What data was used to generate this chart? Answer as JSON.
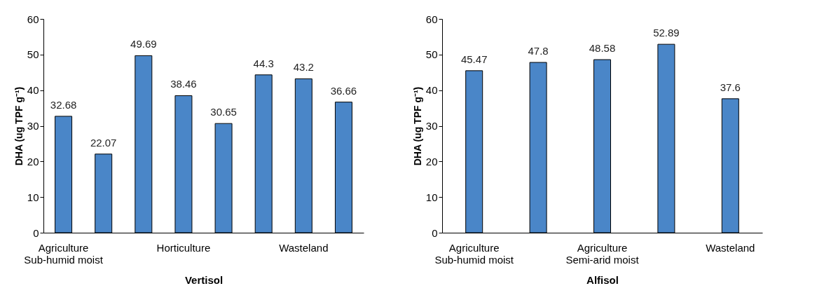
{
  "chart_data": [
    {
      "type": "bar",
      "xlabel": "Vertisol",
      "ylabel": "DHA (ug TPF g⁻¹)",
      "categories": [
        "Agriculture\nSub-humid moist",
        null,
        null,
        "Horticulture",
        null,
        null,
        "Wasteland",
        null
      ],
      "values": [
        32.68,
        22.07,
        49.69,
        38.46,
        30.65,
        44.3,
        43.2,
        36.66
      ],
      "color": "#4a86c8",
      "ylim": [
        0,
        60
      ],
      "yticks": [
        0,
        10,
        20,
        30,
        40,
        50,
        60
      ],
      "data_labels": true
    },
    {
      "type": "bar",
      "xlabel": "Alfisol",
      "ylabel": "DHA (ug TPF g⁻¹)",
      "categories": [
        "Agriculture\nSub-humid moist",
        null,
        "Agriculture\nSemi-arid moist",
        null,
        "Wasteland"
      ],
      "values": [
        45.47,
        47.8,
        48.58,
        52.89,
        37.6
      ],
      "color": "#4a86c8",
      "ylim": [
        0,
        60
      ],
      "yticks": [
        0,
        10,
        20,
        30,
        40,
        50,
        60
      ],
      "data_labels": true
    }
  ]
}
